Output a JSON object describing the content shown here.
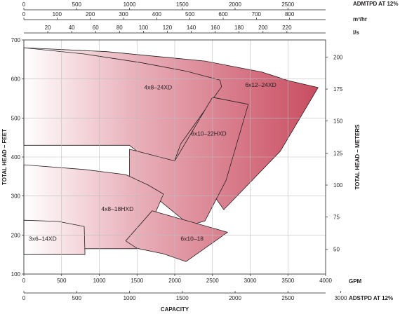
{
  "chart_data": {
    "type": "area",
    "title": "",
    "xlabel": "CAPACITY",
    "x_unit": "GPM",
    "xlim": [
      0,
      4000
    ],
    "x_ticks": [
      0,
      500,
      1000,
      1500,
      2000,
      2500,
      3000,
      3500,
      4000
    ],
    "ylabel": "TOTAL HEAD – FEET",
    "ylim": [
      100,
      700
    ],
    "y_ticks": [
      100,
      200,
      300,
      400,
      500,
      600,
      700
    ],
    "y2label": "TOTAL HEAD – METERS",
    "y2_ticks": [
      50,
      75,
      100,
      125,
      150,
      175,
      200
    ],
    "grid": true,
    "top_axes": [
      {
        "label": "ADMTPD AT 12%",
        "ticks": [
          0,
          500,
          1000,
          1500,
          2000,
          2500
        ],
        "gpm_per_unit": 1.4
      },
      {
        "label": "m³/hr",
        "ticks": [
          0,
          100,
          200,
          300,
          400,
          500,
          600,
          700,
          800
        ],
        "gpm_per_unit": 4.403
      },
      {
        "label": "l/s",
        "ticks": [
          20,
          40,
          60,
          80,
          100,
          120,
          140,
          160,
          180,
          200,
          220
        ],
        "gpm_per_unit": 15.85
      }
    ],
    "bottom_axis2": {
      "label": "ADSTPD AT 12%",
      "ticks": [
        0,
        500,
        1000,
        1500,
        2000,
        2500,
        3000
      ],
      "gpm_per_unit": 1.4
    },
    "series": [
      {
        "name": "6x12–24XD",
        "label_at": [
          3140,
          580
        ],
        "points": [
          [
            0,
            680
          ],
          [
            1100,
            670
          ],
          [
            2400,
            646
          ],
          [
            3150,
            618
          ],
          [
            3520,
            595
          ],
          [
            3900,
            578
          ],
          [
            3400,
            415
          ],
          [
            2650,
            265
          ],
          [
            2450,
            320
          ],
          [
            1700,
            445
          ],
          [
            0,
            445
          ]
        ]
      },
      {
        "name": "4x8–24XD",
        "label_at": [
          1780,
          573
        ],
        "points": [
          [
            0,
            680
          ],
          [
            800,
            664
          ],
          [
            1550,
            642
          ],
          [
            2150,
            620
          ],
          [
            2600,
            597
          ],
          [
            2620,
            580
          ],
          [
            2080,
            434
          ],
          [
            1920,
            350
          ],
          [
            1400,
            430
          ],
          [
            0,
            430
          ]
        ]
      },
      {
        "name": "6x10–22HXD",
        "label_at": [
          2450,
          455
        ],
        "points": [
          [
            1400,
            420
          ],
          [
            2000,
            390
          ],
          [
            2500,
            553
          ],
          [
            2975,
            535
          ],
          [
            2680,
            340
          ],
          [
            2400,
            236
          ],
          [
            2200,
            225
          ],
          [
            1600,
            320
          ],
          [
            1400,
            350
          ]
        ]
      },
      {
        "name": "4x8–18HXD",
        "label_at": [
          1240,
          262
        ],
        "points": [
          [
            0,
            380
          ],
          [
            800,
            368
          ],
          [
            1350,
            355
          ],
          [
            1650,
            328
          ],
          [
            1850,
            305
          ],
          [
            1650,
            215
          ],
          [
            1500,
            165
          ],
          [
            0,
            165
          ]
        ]
      },
      {
        "name": "6x10–18",
        "label_at": [
          2230,
          185
        ],
        "points": [
          [
            1350,
            185
          ],
          [
            1700,
            262
          ],
          [
            2700,
            207
          ],
          [
            2150,
            132
          ],
          [
            1850,
            152
          ],
          [
            1500,
            166
          ]
        ]
      },
      {
        "name": "3x6–14XD",
        "label_at": [
          250,
          185
        ],
        "points": [
          [
            0,
            238
          ],
          [
            450,
            235
          ],
          [
            800,
            222
          ],
          [
            810,
            150
          ],
          [
            0,
            150
          ]
        ]
      }
    ]
  }
}
